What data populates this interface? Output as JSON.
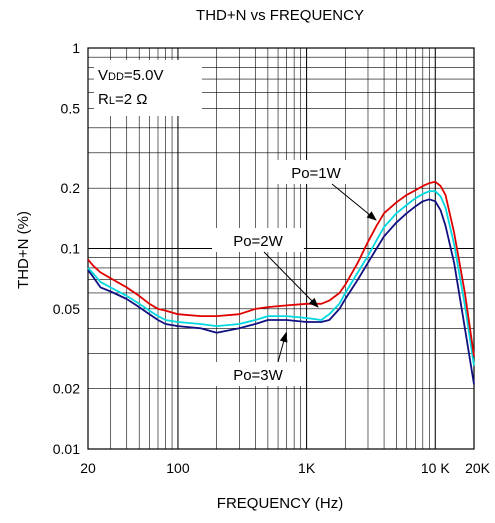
{
  "chart_data": {
    "type": "line",
    "title": "THD+N vs FREQUENCY",
    "xlabel": "FREQUENCY (Hz)",
    "ylabel": "THD+N (%)",
    "x_scale": "log",
    "y_scale": "log",
    "xlim": [
      20,
      20000
    ],
    "ylim": [
      0.01,
      1
    ],
    "grid": true,
    "x_ticks": [
      {
        "value": 20,
        "label": "20"
      },
      {
        "value": 100,
        "label": "100"
      },
      {
        "value": 1000,
        "label": "1K"
      },
      {
        "value": 10000,
        "label": "10 K"
      },
      {
        "value": 20000,
        "label": "20K"
      }
    ],
    "y_ticks": [
      {
        "value": 1,
        "label": "1"
      },
      {
        "value": 0.5,
        "label": "0.5"
      },
      {
        "value": 0.2,
        "label": "0.2"
      },
      {
        "value": 0.1,
        "label": "0.1"
      },
      {
        "value": 0.05,
        "label": "0.05"
      },
      {
        "value": 0.02,
        "label": "0.02"
      },
      {
        "value": 0.01,
        "label": "0.01"
      }
    ],
    "conditions": {
      "vdd_prefix": "V",
      "vdd_sub": "DD",
      "vdd_value": "=5.0V",
      "rl_prefix": "R",
      "rl_sub": "L",
      "rl_value": "=2 Ω"
    },
    "series": [
      {
        "name": "Po=1W",
        "color": "#e00000",
        "points": [
          [
            20,
            0.088
          ],
          [
            22,
            0.082
          ],
          [
            25,
            0.076
          ],
          [
            30,
            0.071
          ],
          [
            40,
            0.064
          ],
          [
            50,
            0.058
          ],
          [
            60,
            0.053
          ],
          [
            70,
            0.05
          ],
          [
            80,
            0.049
          ],
          [
            100,
            0.047
          ],
          [
            150,
            0.046
          ],
          [
            200,
            0.046
          ],
          [
            300,
            0.047
          ],
          [
            400,
            0.05
          ],
          [
            500,
            0.051
          ],
          [
            700,
            0.052
          ],
          [
            1000,
            0.053
          ],
          [
            1300,
            0.053
          ],
          [
            1500,
            0.055
          ],
          [
            1800,
            0.06
          ],
          [
            2000,
            0.066
          ],
          [
            2500,
            0.085
          ],
          [
            3000,
            0.108
          ],
          [
            3500,
            0.13
          ],
          [
            4000,
            0.15
          ],
          [
            5000,
            0.17
          ],
          [
            6000,
            0.185
          ],
          [
            7000,
            0.195
          ],
          [
            8000,
            0.205
          ],
          [
            9000,
            0.212
          ],
          [
            10000,
            0.215
          ],
          [
            11000,
            0.205
          ],
          [
            12000,
            0.185
          ],
          [
            14000,
            0.12
          ],
          [
            17000,
            0.06
          ],
          [
            20000,
            0.029
          ]
        ]
      },
      {
        "name": "Po=2W",
        "color": "#00d8e0",
        "points": [
          [
            20,
            0.08
          ],
          [
            22,
            0.075
          ],
          [
            25,
            0.068
          ],
          [
            30,
            0.064
          ],
          [
            40,
            0.058
          ],
          [
            50,
            0.053
          ],
          [
            60,
            0.049
          ],
          [
            70,
            0.046
          ],
          [
            80,
            0.044
          ],
          [
            100,
            0.043
          ],
          [
            150,
            0.042
          ],
          [
            200,
            0.041
          ],
          [
            300,
            0.042
          ],
          [
            400,
            0.044
          ],
          [
            500,
            0.046
          ],
          [
            700,
            0.046
          ],
          [
            1000,
            0.045
          ],
          [
            1300,
            0.044
          ],
          [
            1500,
            0.047
          ],
          [
            1800,
            0.053
          ],
          [
            2000,
            0.06
          ],
          [
            2500,
            0.076
          ],
          [
            3000,
            0.092
          ],
          [
            3500,
            0.11
          ],
          [
            4000,
            0.128
          ],
          [
            5000,
            0.15
          ],
          [
            6000,
            0.165
          ],
          [
            7000,
            0.178
          ],
          [
            8000,
            0.187
          ],
          [
            9000,
            0.193
          ],
          [
            10000,
            0.193
          ],
          [
            11000,
            0.182
          ],
          [
            12000,
            0.16
          ],
          [
            14000,
            0.105
          ],
          [
            17000,
            0.052
          ],
          [
            20000,
            0.026
          ]
        ]
      },
      {
        "name": "Po=3W",
        "color": "#101080",
        "points": [
          [
            20,
            0.078
          ],
          [
            22,
            0.072
          ],
          [
            25,
            0.064
          ],
          [
            30,
            0.061
          ],
          [
            40,
            0.056
          ],
          [
            50,
            0.051
          ],
          [
            60,
            0.047
          ],
          [
            70,
            0.044
          ],
          [
            80,
            0.042
          ],
          [
            100,
            0.041
          ],
          [
            150,
            0.04
          ],
          [
            200,
            0.038
          ],
          [
            300,
            0.04
          ],
          [
            400,
            0.042
          ],
          [
            500,
            0.044
          ],
          [
            700,
            0.044
          ],
          [
            1000,
            0.043
          ],
          [
            1300,
            0.043
          ],
          [
            1500,
            0.044
          ],
          [
            1800,
            0.05
          ],
          [
            2000,
            0.056
          ],
          [
            2500,
            0.07
          ],
          [
            3000,
            0.085
          ],
          [
            3500,
            0.1
          ],
          [
            4000,
            0.115
          ],
          [
            5000,
            0.135
          ],
          [
            6000,
            0.15
          ],
          [
            7000,
            0.162
          ],
          [
            8000,
            0.172
          ],
          [
            9000,
            0.176
          ],
          [
            10000,
            0.172
          ],
          [
            11000,
            0.155
          ],
          [
            12000,
            0.13
          ],
          [
            14000,
            0.085
          ],
          [
            17000,
            0.04
          ],
          [
            20000,
            0.021
          ]
        ]
      }
    ]
  }
}
